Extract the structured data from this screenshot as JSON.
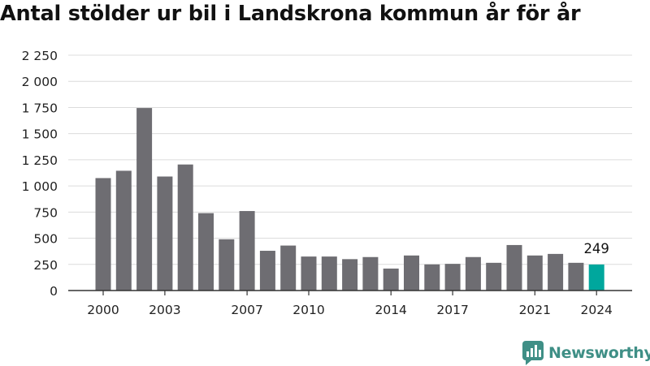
{
  "title": "Antal stölder ur bil i Landskrona kommun år för år",
  "brand": {
    "name": "Newsworthy",
    "logo_icon": "newsworthy-chart-icon"
  },
  "colors": {
    "bar": "#6e6d72",
    "highlight": "#00a79d",
    "grid": "#dcdcdc",
    "axis": "#333333",
    "text": "#222222",
    "brand": "#3f8f86"
  },
  "chart_data": {
    "type": "bar",
    "title": "Antal stölder ur bil i Landskrona kommun år för år",
    "xlabel": "",
    "ylabel": "",
    "categories": [
      "2000",
      "2001",
      "2002",
      "2003",
      "2004",
      "2005",
      "2006",
      "2007",
      "2008",
      "2009",
      "2010",
      "2011",
      "2012",
      "2013",
      "2014",
      "2015",
      "2016",
      "2017",
      "2018",
      "2019",
      "2020",
      "2021",
      "2022",
      "2023",
      "2024"
    ],
    "values": [
      1075,
      1145,
      1745,
      1090,
      1205,
      740,
      490,
      760,
      380,
      430,
      325,
      325,
      300,
      320,
      210,
      335,
      250,
      255,
      320,
      265,
      435,
      335,
      350,
      265,
      249
    ],
    "highlight_index": 24,
    "value_label": {
      "index": 24,
      "text": "249"
    },
    "ylim": [
      0,
      2250
    ],
    "y_ticks": [
      {
        "value": 0,
        "label": "0"
      },
      {
        "value": 250,
        "label": "250"
      },
      {
        "value": 500,
        "label": "500"
      },
      {
        "value": 750,
        "label": "750"
      },
      {
        "value": 1000,
        "label": "1 000"
      },
      {
        "value": 1250,
        "label": "1 250"
      },
      {
        "value": 1500,
        "label": "1 500"
      },
      {
        "value": 1750,
        "label": "1 750"
      },
      {
        "value": 2000,
        "label": "2 000"
      },
      {
        "value": 2250,
        "label": "2 250"
      }
    ],
    "x_ticks": [
      "2000",
      "2003",
      "2007",
      "2010",
      "2014",
      "2017",
      "2021",
      "2024"
    ],
    "grid": true,
    "legend": "none"
  }
}
